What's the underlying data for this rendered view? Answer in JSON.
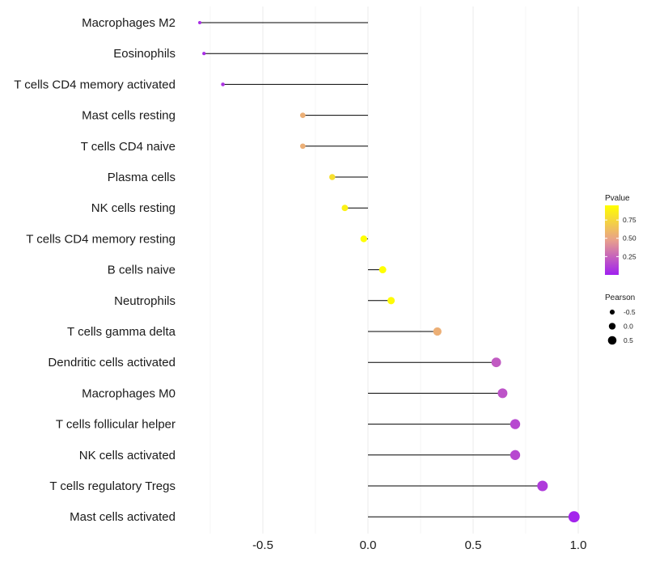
{
  "chart_data": {
    "type": "lollipop",
    "title": "",
    "xlabel": "",
    "ylabel": "",
    "xlim": [
      -0.75,
      1.0
    ],
    "x_ticks": [
      {
        "value": -0.5,
        "label": "-0.5"
      },
      {
        "value": 0.0,
        "label": "0.0"
      },
      {
        "value": 0.5,
        "label": "0.5"
      },
      {
        "value": 1.0,
        "label": "1.0"
      }
    ],
    "categories": [
      "Macrophages M2",
      "Eosinophils",
      "T cells CD4 memory activated",
      "Mast cells resting",
      "T cells CD4 naive",
      "Plasma cells",
      "NK cells resting",
      "T cells CD4 memory resting",
      "B cells naive",
      "Neutrophils",
      "T cells gamma delta",
      "Dendritic cells activated",
      "Macrophages M0",
      "T cells follicular helper",
      "NK cells activated",
      "T cells regulatory  Tregs",
      "Mast cells activated"
    ],
    "pearson": [
      -0.8,
      -0.78,
      -0.69,
      -0.31,
      -0.31,
      -0.17,
      -0.11,
      -0.02,
      0.07,
      0.11,
      0.33,
      0.61,
      0.64,
      0.7,
      0.7,
      0.83,
      0.98
    ],
    "pvalue": [
      0.05,
      0.05,
      0.07,
      0.55,
      0.55,
      0.79,
      0.88,
      0.97,
      0.95,
      0.93,
      0.55,
      0.22,
      0.19,
      0.15,
      0.15,
      0.1,
      0.02
    ],
    "legend": {
      "color_title": "Pvalue",
      "color_ticks": [
        {
          "value": 0.75,
          "label": "0.75"
        },
        {
          "value": 0.5,
          "label": "0.50"
        },
        {
          "value": 0.25,
          "label": "0.25"
        }
      ],
      "color_range": [
        0.0,
        0.95
      ],
      "color_low": "#a020f0",
      "color_mid": "#e8a08c",
      "color_high": "#ffff00",
      "size_title": "Pearson",
      "size_entries": [
        {
          "value": -0.5,
          "label": "-0.5"
        },
        {
          "value": 0.0,
          "label": "0.0"
        },
        {
          "value": 0.5,
          "label": "0.5"
        }
      ]
    }
  }
}
